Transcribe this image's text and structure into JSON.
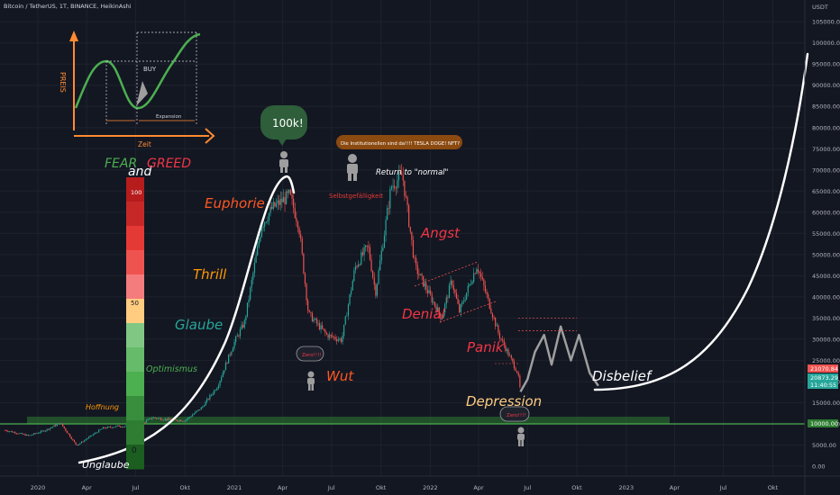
{
  "header": {
    "title": "Bitcoin / TetherUS, 1T, BINANCE, HeikinAshi",
    "currency": "USDT"
  },
  "colors": {
    "background": "#131722",
    "grid": "#1e222d",
    "up": "#26a69a",
    "down": "#ef5350",
    "support_band": "#2e7d32",
    "support_line": "#4caf50",
    "cycle_curve": "#ffffff",
    "label_orange": "#ff7d1a",
    "label_red": "#f23645",
    "label_green": "#4caf50",
    "label_teal": "#26a69a",
    "label_yellow": "#ffcc80"
  },
  "chart_data": {
    "type": "candlestick",
    "title": "Bitcoin / TetherUS, 1T, BINANCE, HeikinAshi",
    "ylabel": "USDT",
    "ylim": [
      0,
      105000
    ],
    "y_ticks": [
      0,
      5000,
      10000,
      15000,
      20000,
      25000,
      30000,
      35000,
      40000,
      45000,
      50000,
      55000,
      60000,
      65000,
      70000,
      75000,
      80000,
      85000,
      90000,
      95000,
      100000,
      105000
    ],
    "y_tick_labels": [
      "0.00",
      "5000.00",
      "10000.00",
      "15000.00",
      "20000.00",
      "25000.00",
      "30000.00",
      "35000.00",
      "40000.00",
      "45000.00",
      "50000.00",
      "55000.00",
      "60000.00",
      "65000.00",
      "70000.00",
      "75000.00",
      "80000.00",
      "85000.00",
      "90000.00",
      "95000.00",
      "100000.00",
      "105000.00"
    ],
    "x_tick_labels": [
      "2020",
      "Apr",
      "Jul",
      "Okt",
      "2021",
      "Apr",
      "Jul",
      "Okt",
      "2022",
      "Apr",
      "Jul",
      "Okt",
      "2023",
      "Apr",
      "Jul",
      "Okt"
    ],
    "price_path": [
      [
        "2019-11-01",
        8500
      ],
      [
        "2019-12-15",
        7200
      ],
      [
        "2020-01-15",
        8500
      ],
      [
        "2020-02-12",
        10200
      ],
      [
        "2020-03-13",
        4900
      ],
      [
        "2020-04-01",
        6500
      ],
      [
        "2020-05-01",
        9000
      ],
      [
        "2020-06-01",
        9500
      ],
      [
        "2020-07-01",
        9200
      ],
      [
        "2020-08-01",
        11500
      ],
      [
        "2020-09-01",
        11000
      ],
      [
        "2020-10-01",
        10800
      ],
      [
        "2020-11-01",
        13800
      ],
      [
        "2020-12-01",
        19000
      ],
      [
        "2020-12-31",
        29000
      ],
      [
        "2021-01-20",
        34000
      ],
      [
        "2021-02-21",
        57000
      ],
      [
        "2021-03-13",
        61000
      ],
      [
        "2021-04-14",
        64000
      ],
      [
        "2021-05-01",
        57000
      ],
      [
        "2021-05-19",
        36000
      ],
      [
        "2021-06-22",
        31000
      ],
      [
        "2021-07-20",
        29800
      ],
      [
        "2021-08-14",
        47000
      ],
      [
        "2021-09-07",
        52000
      ],
      [
        "2021-09-21",
        41000
      ],
      [
        "2021-10-20",
        66000
      ],
      [
        "2021-11-10",
        68900
      ],
      [
        "2021-12-04",
        47000
      ],
      [
        "2022-01-22",
        35000
      ],
      [
        "2022-02-10",
        44000
      ],
      [
        "2022-02-24",
        36500
      ],
      [
        "2022-03-29",
        47500
      ],
      [
        "2022-05-09",
        31000
      ],
      [
        "2022-06-13",
        22000
      ],
      [
        "2022-06-18",
        17600
      ]
    ],
    "projection_path": [
      [
        "2022-06-18",
        17600
      ],
      [
        "2022-07-01",
        20500
      ],
      [
        "2022-07-15",
        27000
      ],
      [
        "2022-08-01",
        31000
      ],
      [
        "2022-08-15",
        24000
      ],
      [
        "2022-09-01",
        33000
      ],
      [
        "2022-09-20",
        25000
      ],
      [
        "2022-10-05",
        31000
      ],
      [
        "2022-10-25",
        22000
      ],
      [
        "2022-11-10",
        19000
      ]
    ],
    "current_price": "21070.84",
    "prev_close": "20873.29",
    "countdown": "11:40:55",
    "support_level": "10000.00",
    "resistance_level": 32000
  },
  "phases": {
    "unglaube": "Unglaube",
    "hoffnung": "Hoffnung",
    "optimismus": "Optimismus",
    "glaube": "Glaube",
    "thrill": "Thrill",
    "euphorie": "Euphorie",
    "wut": "Wut",
    "selbstgefaelligkeit": "Selbstgefälligkeit",
    "return_normal": "Return to \"normal\"",
    "angst": "Angst",
    "denial": "Denial",
    "panik": "Panik",
    "depression": "Depression",
    "disbelief": "Disbelief"
  },
  "callouts": {
    "bubble_100k": "100k!",
    "institutions": "Die Institutionellen sind da!!!! TESLA DOGE! NFT?",
    "zero_1": "Zero!!!!",
    "zero_2": "Zero!!!!"
  },
  "fear_greed": {
    "fear": "FEAR",
    "and": "and",
    "greed": "GREED",
    "top": "100",
    "mid": "50",
    "bottom": "0",
    "segments": [
      "#b71c1c",
      "#c62828",
      "#e53935",
      "#ef5350",
      "#f57c7c",
      "#ffcc80",
      "#81c784",
      "#66bb6a",
      "#4caf50",
      "#388e3c",
      "#2e7d32",
      "#1b5e20"
    ]
  },
  "inset": {
    "ylabel": "PREIS",
    "xlabel": "Zeit",
    "buy": "BUY",
    "expansion": "Expansion"
  }
}
